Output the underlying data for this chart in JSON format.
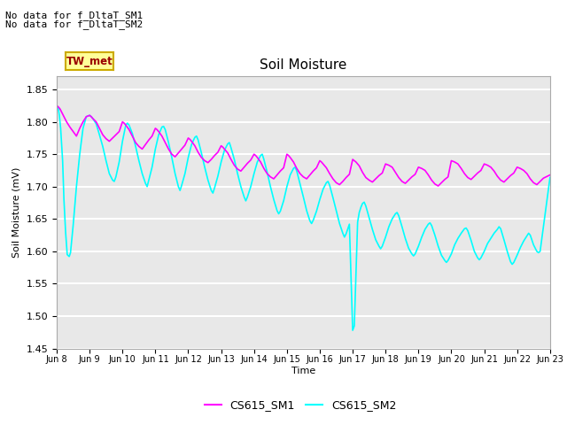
{
  "title": "Soil Moisture",
  "ylabel": "Soil Moisture (mV)",
  "xlabel": "Time",
  "ylim": [
    1.45,
    1.87
  ],
  "annotation1": "No data for f_DltaT_SM1",
  "annotation2": "No data for f_DltaT_SM2",
  "tw_met_label": "TW_met",
  "legend_sm1": "CS615_SM1",
  "legend_sm2": "CS615_SM2",
  "color_sm1": "#FF00FF",
  "color_sm2": "#00FFFF",
  "bg_color": "#E8E8E8",
  "xtick_labels": [
    "Jun 8",
    "Jun 9",
    "Jun 10",
    "Jun 11",
    "Jun 12",
    "Jun 13",
    "Jun 14",
    "Jun 15",
    "Jun 16",
    "Jun 17",
    "Jun 18",
    "Jun 19",
    "Jun 20",
    "Jun 21",
    "Jun 22",
    "Jun 23"
  ],
  "sm1_data": [
    [
      0.0,
      1.825
    ],
    [
      0.05,
      1.823
    ],
    [
      0.1,
      1.82
    ],
    [
      0.15,
      1.815
    ],
    [
      0.2,
      1.81
    ],
    [
      0.3,
      1.8
    ],
    [
      0.4,
      1.792
    ],
    [
      0.5,
      1.785
    ],
    [
      0.6,
      1.778
    ],
    [
      0.7,
      1.79
    ],
    [
      0.8,
      1.8
    ],
    [
      0.9,
      1.808
    ],
    [
      1.0,
      1.81
    ],
    [
      1.05,
      1.808
    ],
    [
      1.1,
      1.805
    ],
    [
      1.2,
      1.8
    ],
    [
      1.3,
      1.79
    ],
    [
      1.4,
      1.78
    ],
    [
      1.5,
      1.774
    ],
    [
      1.6,
      1.77
    ],
    [
      1.7,
      1.775
    ],
    [
      1.8,
      1.78
    ],
    [
      1.9,
      1.785
    ],
    [
      2.0,
      1.8
    ],
    [
      2.05,
      1.798
    ],
    [
      2.1,
      1.795
    ],
    [
      2.2,
      1.788
    ],
    [
      2.3,
      1.778
    ],
    [
      2.4,
      1.768
    ],
    [
      2.5,
      1.762
    ],
    [
      2.6,
      1.758
    ],
    [
      2.7,
      1.765
    ],
    [
      2.8,
      1.772
    ],
    [
      2.9,
      1.778
    ],
    [
      3.0,
      1.79
    ],
    [
      3.05,
      1.788
    ],
    [
      3.1,
      1.785
    ],
    [
      3.2,
      1.778
    ],
    [
      3.3,
      1.768
    ],
    [
      3.4,
      1.758
    ],
    [
      3.5,
      1.75
    ],
    [
      3.6,
      1.746
    ],
    [
      3.7,
      1.752
    ],
    [
      3.8,
      1.758
    ],
    [
      3.9,
      1.764
    ],
    [
      4.0,
      1.775
    ],
    [
      4.05,
      1.773
    ],
    [
      4.1,
      1.77
    ],
    [
      4.2,
      1.763
    ],
    [
      4.3,
      1.753
    ],
    [
      4.4,
      1.745
    ],
    [
      4.5,
      1.74
    ],
    [
      4.6,
      1.737
    ],
    [
      4.7,
      1.742
    ],
    [
      4.8,
      1.748
    ],
    [
      4.9,
      1.753
    ],
    [
      5.0,
      1.763
    ],
    [
      5.05,
      1.761
    ],
    [
      5.1,
      1.758
    ],
    [
      5.2,
      1.752
    ],
    [
      5.3,
      1.742
    ],
    [
      5.4,
      1.733
    ],
    [
      5.5,
      1.727
    ],
    [
      5.6,
      1.724
    ],
    [
      5.7,
      1.73
    ],
    [
      5.8,
      1.736
    ],
    [
      5.9,
      1.741
    ],
    [
      6.0,
      1.75
    ],
    [
      6.05,
      1.748
    ],
    [
      6.1,
      1.745
    ],
    [
      6.2,
      1.738
    ],
    [
      6.3,
      1.728
    ],
    [
      6.4,
      1.72
    ],
    [
      6.5,
      1.715
    ],
    [
      6.6,
      1.712
    ],
    [
      6.7,
      1.718
    ],
    [
      6.8,
      1.724
    ],
    [
      6.9,
      1.729
    ],
    [
      7.0,
      1.75
    ],
    [
      7.05,
      1.748
    ],
    [
      7.1,
      1.745
    ],
    [
      7.2,
      1.738
    ],
    [
      7.3,
      1.728
    ],
    [
      7.4,
      1.72
    ],
    [
      7.5,
      1.715
    ],
    [
      7.6,
      1.712
    ],
    [
      7.7,
      1.718
    ],
    [
      7.8,
      1.724
    ],
    [
      7.9,
      1.729
    ],
    [
      8.0,
      1.74
    ],
    [
      8.05,
      1.738
    ],
    [
      8.1,
      1.735
    ],
    [
      8.2,
      1.729
    ],
    [
      8.3,
      1.72
    ],
    [
      8.4,
      1.712
    ],
    [
      8.5,
      1.706
    ],
    [
      8.6,
      1.703
    ],
    [
      8.7,
      1.708
    ],
    [
      8.8,
      1.714
    ],
    [
      8.9,
      1.719
    ],
    [
      9.0,
      1.742
    ],
    [
      9.05,
      1.74
    ],
    [
      9.1,
      1.738
    ],
    [
      9.2,
      1.732
    ],
    [
      9.3,
      1.722
    ],
    [
      9.4,
      1.714
    ],
    [
      9.5,
      1.71
    ],
    [
      9.6,
      1.707
    ],
    [
      9.7,
      1.712
    ],
    [
      9.8,
      1.717
    ],
    [
      9.9,
      1.721
    ],
    [
      10.0,
      1.735
    ],
    [
      10.1,
      1.733
    ],
    [
      10.2,
      1.73
    ],
    [
      10.3,
      1.722
    ],
    [
      10.4,
      1.714
    ],
    [
      10.5,
      1.708
    ],
    [
      10.6,
      1.705
    ],
    [
      10.7,
      1.71
    ],
    [
      10.8,
      1.715
    ],
    [
      10.9,
      1.719
    ],
    [
      11.0,
      1.73
    ],
    [
      11.1,
      1.728
    ],
    [
      11.2,
      1.725
    ],
    [
      11.3,
      1.718
    ],
    [
      11.4,
      1.71
    ],
    [
      11.5,
      1.704
    ],
    [
      11.6,
      1.701
    ],
    [
      11.7,
      1.706
    ],
    [
      11.8,
      1.711
    ],
    [
      11.9,
      1.715
    ],
    [
      12.0,
      1.74
    ],
    [
      12.1,
      1.738
    ],
    [
      12.2,
      1.735
    ],
    [
      12.3,
      1.728
    ],
    [
      12.4,
      1.72
    ],
    [
      12.5,
      1.714
    ],
    [
      12.6,
      1.711
    ],
    [
      12.7,
      1.716
    ],
    [
      12.8,
      1.721
    ],
    [
      12.9,
      1.725
    ],
    [
      13.0,
      1.735
    ],
    [
      13.1,
      1.733
    ],
    [
      13.2,
      1.73
    ],
    [
      13.3,
      1.724
    ],
    [
      13.4,
      1.716
    ],
    [
      13.5,
      1.71
    ],
    [
      13.6,
      1.707
    ],
    [
      13.7,
      1.712
    ],
    [
      13.8,
      1.717
    ],
    [
      13.9,
      1.721
    ],
    [
      14.0,
      1.73
    ],
    [
      14.1,
      1.728
    ],
    [
      14.2,
      1.725
    ],
    [
      14.3,
      1.72
    ],
    [
      14.4,
      1.712
    ],
    [
      14.5,
      1.706
    ],
    [
      14.6,
      1.703
    ],
    [
      14.7,
      1.708
    ],
    [
      14.8,
      1.713
    ],
    [
      15.0,
      1.718
    ]
  ],
  "sm2_data": [
    [
      0.0,
      1.825
    ],
    [
      0.05,
      1.82
    ],
    [
      0.08,
      1.81
    ],
    [
      0.12,
      1.79
    ],
    [
      0.18,
      1.74
    ],
    [
      0.22,
      1.68
    ],
    [
      0.27,
      1.63
    ],
    [
      0.32,
      1.595
    ],
    [
      0.38,
      1.592
    ],
    [
      0.42,
      1.598
    ],
    [
      0.5,
      1.64
    ],
    [
      0.6,
      1.7
    ],
    [
      0.7,
      1.75
    ],
    [
      0.8,
      1.79
    ],
    [
      0.9,
      1.808
    ],
    [
      1.0,
      1.81
    ],
    [
      1.05,
      1.808
    ],
    [
      1.1,
      1.805
    ],
    [
      1.2,
      1.797
    ],
    [
      1.3,
      1.78
    ],
    [
      1.4,
      1.762
    ],
    [
      1.5,
      1.74
    ],
    [
      1.6,
      1.72
    ],
    [
      1.7,
      1.71
    ],
    [
      1.75,
      1.708
    ],
    [
      1.8,
      1.715
    ],
    [
      1.9,
      1.738
    ],
    [
      2.0,
      1.77
    ],
    [
      2.1,
      1.795
    ],
    [
      2.15,
      1.798
    ],
    [
      2.2,
      1.795
    ],
    [
      2.3,
      1.782
    ],
    [
      2.4,
      1.762
    ],
    [
      2.5,
      1.74
    ],
    [
      2.6,
      1.72
    ],
    [
      2.7,
      1.705
    ],
    [
      2.75,
      1.7
    ],
    [
      2.8,
      1.71
    ],
    [
      2.9,
      1.73
    ],
    [
      3.0,
      1.758
    ],
    [
      3.1,
      1.78
    ],
    [
      3.2,
      1.792
    ],
    [
      3.25,
      1.793
    ],
    [
      3.3,
      1.788
    ],
    [
      3.4,
      1.768
    ],
    [
      3.5,
      1.745
    ],
    [
      3.6,
      1.72
    ],
    [
      3.7,
      1.7
    ],
    [
      3.75,
      1.694
    ],
    [
      3.8,
      1.702
    ],
    [
      3.9,
      1.72
    ],
    [
      4.0,
      1.745
    ],
    [
      4.1,
      1.765
    ],
    [
      4.2,
      1.776
    ],
    [
      4.25,
      1.778
    ],
    [
      4.3,
      1.772
    ],
    [
      4.4,
      1.752
    ],
    [
      4.5,
      1.73
    ],
    [
      4.6,
      1.71
    ],
    [
      4.7,
      1.694
    ],
    [
      4.75,
      1.69
    ],
    [
      4.8,
      1.698
    ],
    [
      4.9,
      1.716
    ],
    [
      5.0,
      1.738
    ],
    [
      5.1,
      1.756
    ],
    [
      5.2,
      1.766
    ],
    [
      5.25,
      1.768
    ],
    [
      5.3,
      1.76
    ],
    [
      5.4,
      1.742
    ],
    [
      5.5,
      1.72
    ],
    [
      5.6,
      1.7
    ],
    [
      5.7,
      1.684
    ],
    [
      5.75,
      1.678
    ],
    [
      5.8,
      1.684
    ],
    [
      5.9,
      1.7
    ],
    [
      6.0,
      1.72
    ],
    [
      6.1,
      1.738
    ],
    [
      6.2,
      1.748
    ],
    [
      6.25,
      1.75
    ],
    [
      6.3,
      1.742
    ],
    [
      6.4,
      1.722
    ],
    [
      6.5,
      1.7
    ],
    [
      6.6,
      1.68
    ],
    [
      6.7,
      1.663
    ],
    [
      6.75,
      1.658
    ],
    [
      6.8,
      1.662
    ],
    [
      6.9,
      1.678
    ],
    [
      7.0,
      1.7
    ],
    [
      7.1,
      1.718
    ],
    [
      7.2,
      1.728
    ],
    [
      7.25,
      1.73
    ],
    [
      7.3,
      1.724
    ],
    [
      7.4,
      1.704
    ],
    [
      7.5,
      1.684
    ],
    [
      7.6,
      1.663
    ],
    [
      7.7,
      1.647
    ],
    [
      7.75,
      1.643
    ],
    [
      7.8,
      1.648
    ],
    [
      7.9,
      1.662
    ],
    [
      8.0,
      1.68
    ],
    [
      8.1,
      1.696
    ],
    [
      8.2,
      1.706
    ],
    [
      8.25,
      1.708
    ],
    [
      8.3,
      1.702
    ],
    [
      8.4,
      1.683
    ],
    [
      8.5,
      1.663
    ],
    [
      8.6,
      1.643
    ],
    [
      8.7,
      1.628
    ],
    [
      8.75,
      1.622
    ],
    [
      8.8,
      1.627
    ],
    [
      8.9,
      1.642
    ],
    [
      9.0,
      1.478
    ],
    [
      9.05,
      1.485
    ],
    [
      9.15,
      1.645
    ],
    [
      9.2,
      1.66
    ],
    [
      9.25,
      1.668
    ],
    [
      9.3,
      1.674
    ],
    [
      9.35,
      1.676
    ],
    [
      9.4,
      1.67
    ],
    [
      9.5,
      1.652
    ],
    [
      9.6,
      1.634
    ],
    [
      9.7,
      1.618
    ],
    [
      9.8,
      1.608
    ],
    [
      9.85,
      1.604
    ],
    [
      9.9,
      1.608
    ],
    [
      10.0,
      1.622
    ],
    [
      10.1,
      1.638
    ],
    [
      10.2,
      1.65
    ],
    [
      10.3,
      1.658
    ],
    [
      10.35,
      1.66
    ],
    [
      10.4,
      1.655
    ],
    [
      10.5,
      1.638
    ],
    [
      10.6,
      1.62
    ],
    [
      10.7,
      1.605
    ],
    [
      10.8,
      1.596
    ],
    [
      10.85,
      1.593
    ],
    [
      10.9,
      1.596
    ],
    [
      11.0,
      1.608
    ],
    [
      11.1,
      1.622
    ],
    [
      11.2,
      1.634
    ],
    [
      11.3,
      1.642
    ],
    [
      11.35,
      1.644
    ],
    [
      11.4,
      1.64
    ],
    [
      11.5,
      1.625
    ],
    [
      11.6,
      1.608
    ],
    [
      11.7,
      1.594
    ],
    [
      11.8,
      1.586
    ],
    [
      11.85,
      1.583
    ],
    [
      11.9,
      1.586
    ],
    [
      12.0,
      1.596
    ],
    [
      12.1,
      1.61
    ],
    [
      12.2,
      1.62
    ],
    [
      12.3,
      1.628
    ],
    [
      12.4,
      1.635
    ],
    [
      12.45,
      1.636
    ],
    [
      12.5,
      1.632
    ],
    [
      12.6,
      1.617
    ],
    [
      12.7,
      1.6
    ],
    [
      12.8,
      1.59
    ],
    [
      12.85,
      1.587
    ],
    [
      12.9,
      1.59
    ],
    [
      13.0,
      1.6
    ],
    [
      13.1,
      1.612
    ],
    [
      13.2,
      1.62
    ],
    [
      13.3,
      1.628
    ],
    [
      13.4,
      1.634
    ],
    [
      13.45,
      1.638
    ],
    [
      13.5,
      1.635
    ],
    [
      13.6,
      1.618
    ],
    [
      13.7,
      1.6
    ],
    [
      13.8,
      1.584
    ],
    [
      13.85,
      1.58
    ],
    [
      13.9,
      1.583
    ],
    [
      14.0,
      1.594
    ],
    [
      14.1,
      1.606
    ],
    [
      14.2,
      1.616
    ],
    [
      14.3,
      1.624
    ],
    [
      14.35,
      1.628
    ],
    [
      14.4,
      1.625
    ],
    [
      14.5,
      1.61
    ],
    [
      14.6,
      1.6
    ],
    [
      14.65,
      1.598
    ],
    [
      14.7,
      1.6
    ],
    [
      15.0,
      1.714
    ]
  ]
}
